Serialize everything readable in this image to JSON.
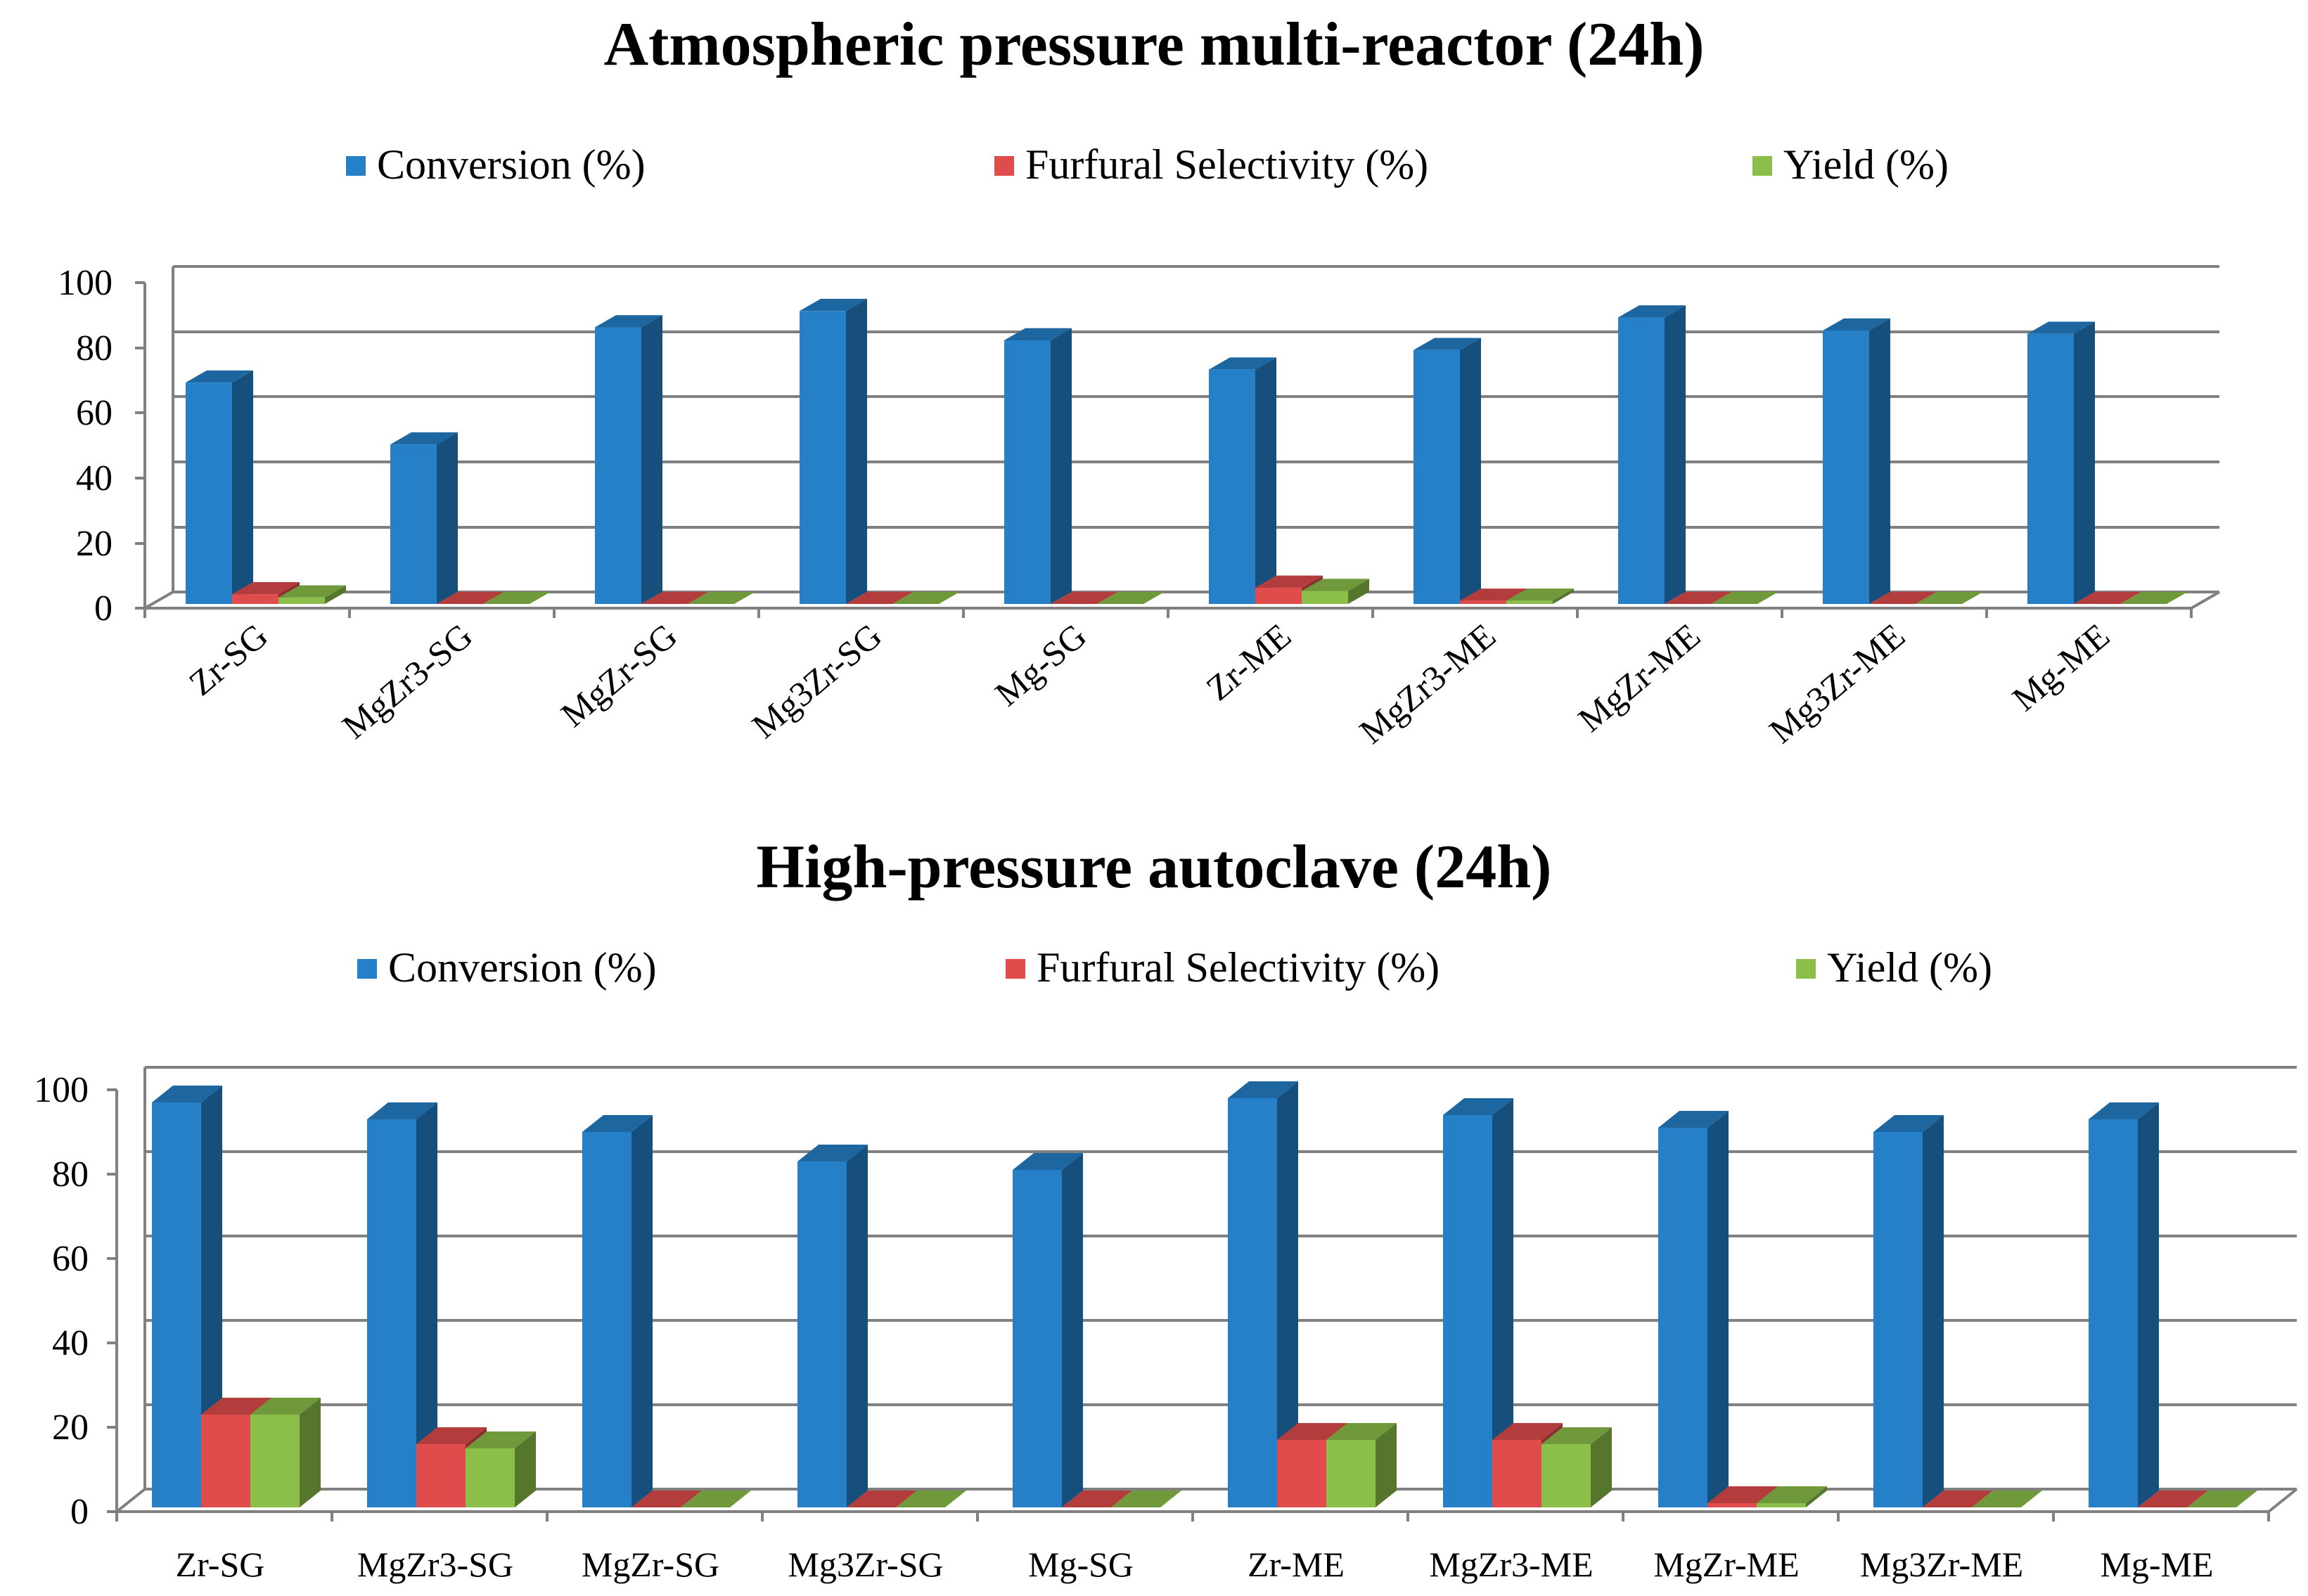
{
  "chart_data": [
    {
      "type": "bar",
      "style": "3d-clustered-column",
      "title": "Atmospheric pressure multi-reactor (24h)",
      "categories": [
        "Zr-SG",
        "MgZr3-SG",
        "MgZr-SG",
        "Mg3Zr-SG",
        "Mg-SG",
        "Zr-ME",
        "MgZr3-ME",
        "MgZr-ME",
        "Mg3Zr-ME",
        "Mg-ME"
      ],
      "category_label_rotation": "diagonal",
      "series": [
        {
          "name": "Conversion (%)",
          "color": "#2580C8",
          "values": [
            68,
            49,
            85,
            90,
            81,
            72,
            78,
            88,
            84,
            83
          ]
        },
        {
          "name": "Furfural Selectivity (%)",
          "color": "#E04B4B",
          "values": [
            3,
            0,
            0,
            0,
            0,
            5,
            1,
            0,
            0,
            0
          ]
        },
        {
          "name": "Yield (%)",
          "color": "#8BBF4A",
          "values": [
            2,
            0,
            0,
            0,
            0,
            4,
            1,
            0,
            0,
            0
          ]
        }
      ],
      "yticks": [
        "0",
        "20",
        "40",
        "60",
        "80",
        "100"
      ],
      "ylim": [
        0,
        100
      ],
      "xlabel": "",
      "ylabel": "",
      "grid": true,
      "legend_position": "top"
    },
    {
      "type": "bar",
      "style": "3d-clustered-column",
      "title": "High-pressure autoclave (24h)",
      "categories": [
        "Zr-SG",
        "MgZr3-SG",
        "MgZr-SG",
        "Mg3Zr-SG",
        "Mg-SG",
        "Zr-ME",
        "MgZr3-ME",
        "MgZr-ME",
        "Mg3Zr-ME",
        "Mg-ME"
      ],
      "category_label_rotation": "horizontal",
      "series": [
        {
          "name": "Conversion (%)",
          "color": "#2580C8",
          "values": [
            96,
            92,
            89,
            82,
            80,
            97,
            93,
            90,
            89,
            92
          ]
        },
        {
          "name": "Furfural Selectivity (%)",
          "color": "#E04B4B",
          "values": [
            22,
            15,
            0,
            0,
            0,
            16,
            16,
            1,
            0,
            0
          ]
        },
        {
          "name": "Yield (%)",
          "color": "#8BBF4A",
          "values": [
            22,
            14,
            0,
            0,
            0,
            16,
            15,
            1,
            0,
            0
          ]
        }
      ],
      "yticks": [
        "0",
        "20",
        "40",
        "60",
        "80",
        "100"
      ],
      "ylim": [
        0,
        100
      ],
      "xlabel": "",
      "ylabel": "",
      "grid": true,
      "legend_position": "top"
    }
  ]
}
